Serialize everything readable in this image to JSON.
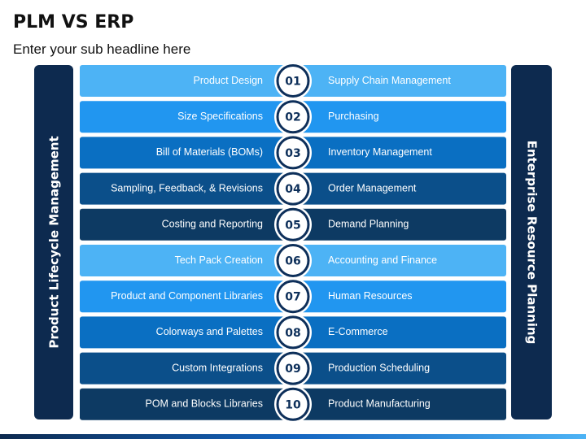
{
  "title": "PLM VS ERP",
  "subtitle": "Enter your sub headline here",
  "left_label": "Product Lifecycle Management",
  "right_label": "Enterprise Resource Planning",
  "rows": [
    {
      "number": "01",
      "left": "Product Design",
      "right": "Supply Chain Management"
    },
    {
      "number": "02",
      "left": "Size Specifications",
      "right": "Purchasing"
    },
    {
      "number": "03",
      "left": "Bill of Materials (BOMs)",
      "right": "Inventory Management"
    },
    {
      "number": "04",
      "left": "Sampling, Feedback, & Revisions",
      "right": "Order Management"
    },
    {
      "number": "05",
      "left": "Costing and Reporting",
      "right": "Demand Planning"
    },
    {
      "number": "06",
      "left": "Tech Pack Creation",
      "right": "Accounting and Finance"
    },
    {
      "number": "07",
      "left": "Product and Component Libraries",
      "right": "Human Resources"
    },
    {
      "number": "08",
      "left": "Colorways and Palettes",
      "right": "E-Commerce"
    },
    {
      "number": "09",
      "left": "Custom Integrations",
      "right": "Production Scheduling"
    },
    {
      "number": "10",
      "left": "POM and Blocks Libraries",
      "right": "Product Manufacturing"
    }
  ]
}
